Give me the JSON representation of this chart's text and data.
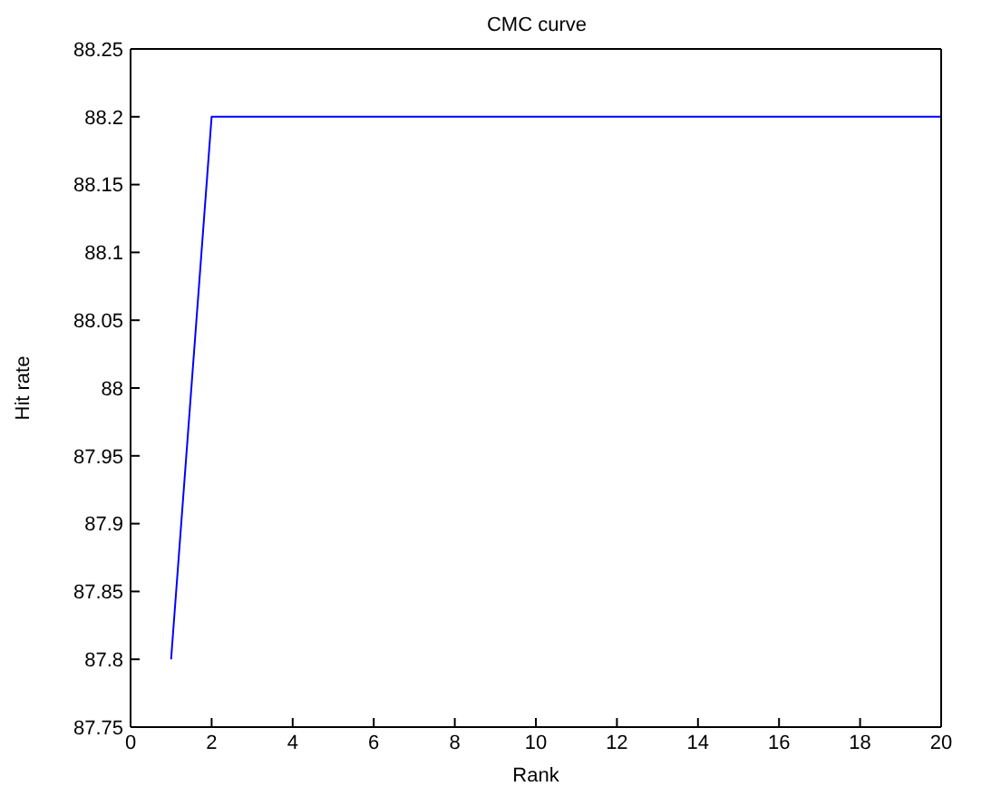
{
  "chart_data": {
    "type": "line",
    "title": "CMC curve",
    "xlabel": "Rank",
    "ylabel": "Hit rate",
    "x": [
      1,
      2,
      3,
      4,
      5,
      6,
      7,
      8,
      9,
      10,
      11,
      12,
      13,
      14,
      15,
      16,
      17,
      18,
      19,
      20
    ],
    "series": [
      {
        "color": "#0000ff",
        "values": [
          87.8,
          88.2,
          88.2,
          88.2,
          88.2,
          88.2,
          88.2,
          88.2,
          88.2,
          88.2,
          88.2,
          88.2,
          88.2,
          88.2,
          88.2,
          88.2,
          88.2,
          88.2,
          88.2,
          88.2
        ]
      }
    ],
    "xlim": [
      0,
      20
    ],
    "xticks": [
      0,
      2,
      4,
      6,
      8,
      10,
      12,
      14,
      16,
      18,
      20
    ],
    "ylim": [
      87.75,
      88.25
    ],
    "yticks": [
      87.75,
      87.8,
      87.85,
      87.9,
      87.95,
      88,
      88.05,
      88.1,
      88.15,
      88.2,
      88.25
    ],
    "grid": false,
    "legend": false,
    "marker": "none",
    "line_style": "solid"
  }
}
